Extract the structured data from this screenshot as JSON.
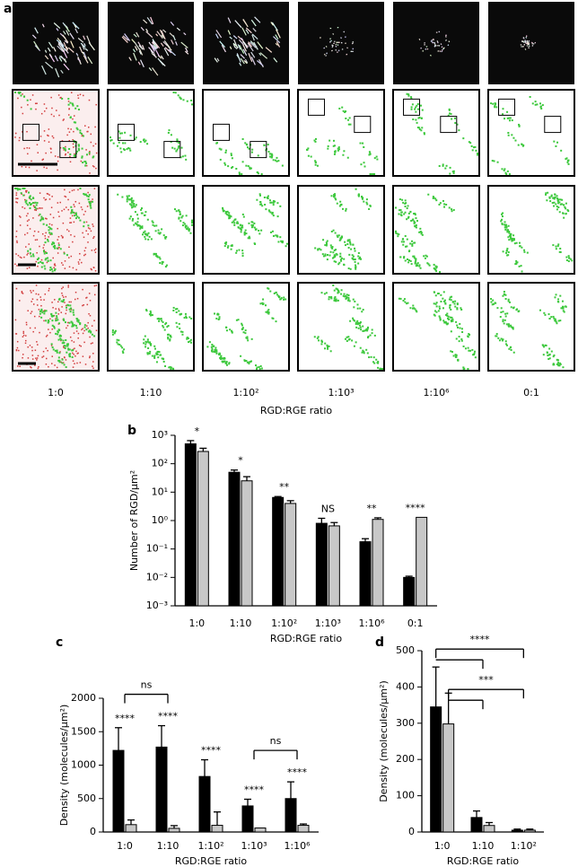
{
  "panel_a": {
    "label": "a",
    "ratios": [
      "1:0",
      "1:10",
      "1:10²",
      "1:10³",
      "1:10⁶",
      "0:1"
    ],
    "xlabel": "RGD:RGE ratio"
  },
  "chart_data": [
    {
      "type": "bar",
      "label": "b",
      "y_scale": "log",
      "ylabel": "Number of RGD/μm²",
      "xlabel": "RGD:RGE ratio",
      "categories": [
        "1:0",
        "1:10",
        "1:10²",
        "1:10³",
        "1:10⁶",
        "0:1"
      ],
      "series": [
        {
          "color": "#000000",
          "values": [
            500,
            50,
            6.5,
            0.8,
            0.18,
            0.01
          ],
          "errors": [
            150,
            10,
            0.5,
            0.4,
            0.05,
            0.001
          ]
        },
        {
          "color": "#c8c8c8",
          "values": [
            270,
            25,
            4,
            0.65,
            1.1,
            1.3
          ],
          "errors": [
            80,
            10,
            1,
            0.2,
            0.15,
            null
          ]
        }
      ],
      "ylim": [
        0.001,
        1000
      ],
      "yticks": [
        {
          "value": 0.001,
          "label": "10⁻³"
        },
        {
          "value": 0.01,
          "label": "10⁻²"
        },
        {
          "value": 0.1,
          "label": "10⁻¹"
        },
        {
          "value": 1,
          "label": "10⁰"
        },
        {
          "value": 10,
          "label": "10¹"
        },
        {
          "value": 100,
          "label": "10²"
        },
        {
          "value": 1000,
          "label": "10³"
        }
      ],
      "annotations": [
        "*",
        "*",
        "**",
        "NS",
        "**",
        "****"
      ]
    },
    {
      "type": "bar",
      "label": "c",
      "ylabel": "Density (molecules/μm²)",
      "xlabel": "RGD:RGE ratio",
      "categories": [
        "1:0",
        "1:10",
        "1:10²",
        "1:10³",
        "1:10⁶"
      ],
      "series": [
        {
          "color": "#000000",
          "values": [
            1220,
            1270,
            830,
            390,
            500
          ],
          "errors": [
            340,
            320,
            250,
            100,
            250
          ]
        },
        {
          "color": "#c8c8c8",
          "values": [
            110,
            55,
            100,
            60,
            100
          ],
          "errors": [
            70,
            40,
            200,
            null,
            20
          ]
        }
      ],
      "ylim": [
        0,
        2000
      ],
      "yticks": [
        0,
        500,
        1000,
        1500,
        2000
      ],
      "annotations": [
        "****",
        "****",
        "****",
        "****",
        "****"
      ],
      "brackets": [
        {
          "from": 0,
          "to": [
            1
          ],
          "label": "ns"
        },
        {
          "from": 3,
          "to": [
            4
          ],
          "label": "ns"
        }
      ]
    },
    {
      "type": "bar",
      "label": "d",
      "ylabel": "Density (molecules/μm²)",
      "xlabel": "RGD:RGE ratio",
      "categories": [
        "1:0",
        "1:10",
        "1:10²"
      ],
      "series": [
        {
          "color": "#000000",
          "values": [
            345,
            40,
            5
          ],
          "errors": [
            110,
            18,
            3
          ]
        },
        {
          "color": "#c8c8c8",
          "values": [
            298,
            18,
            5
          ],
          "errors": [
            85,
            8,
            3
          ]
        }
      ],
      "ylim": [
        0,
        500
      ],
      "yticks": [
        0,
        100,
        200,
        300,
        400,
        500
      ],
      "brackets": [
        {
          "from": 0,
          "to": [
            1,
            2
          ],
          "label": "****"
        },
        {
          "from": 0,
          "to": [
            1,
            2
          ],
          "label": "***"
        }
      ]
    }
  ]
}
